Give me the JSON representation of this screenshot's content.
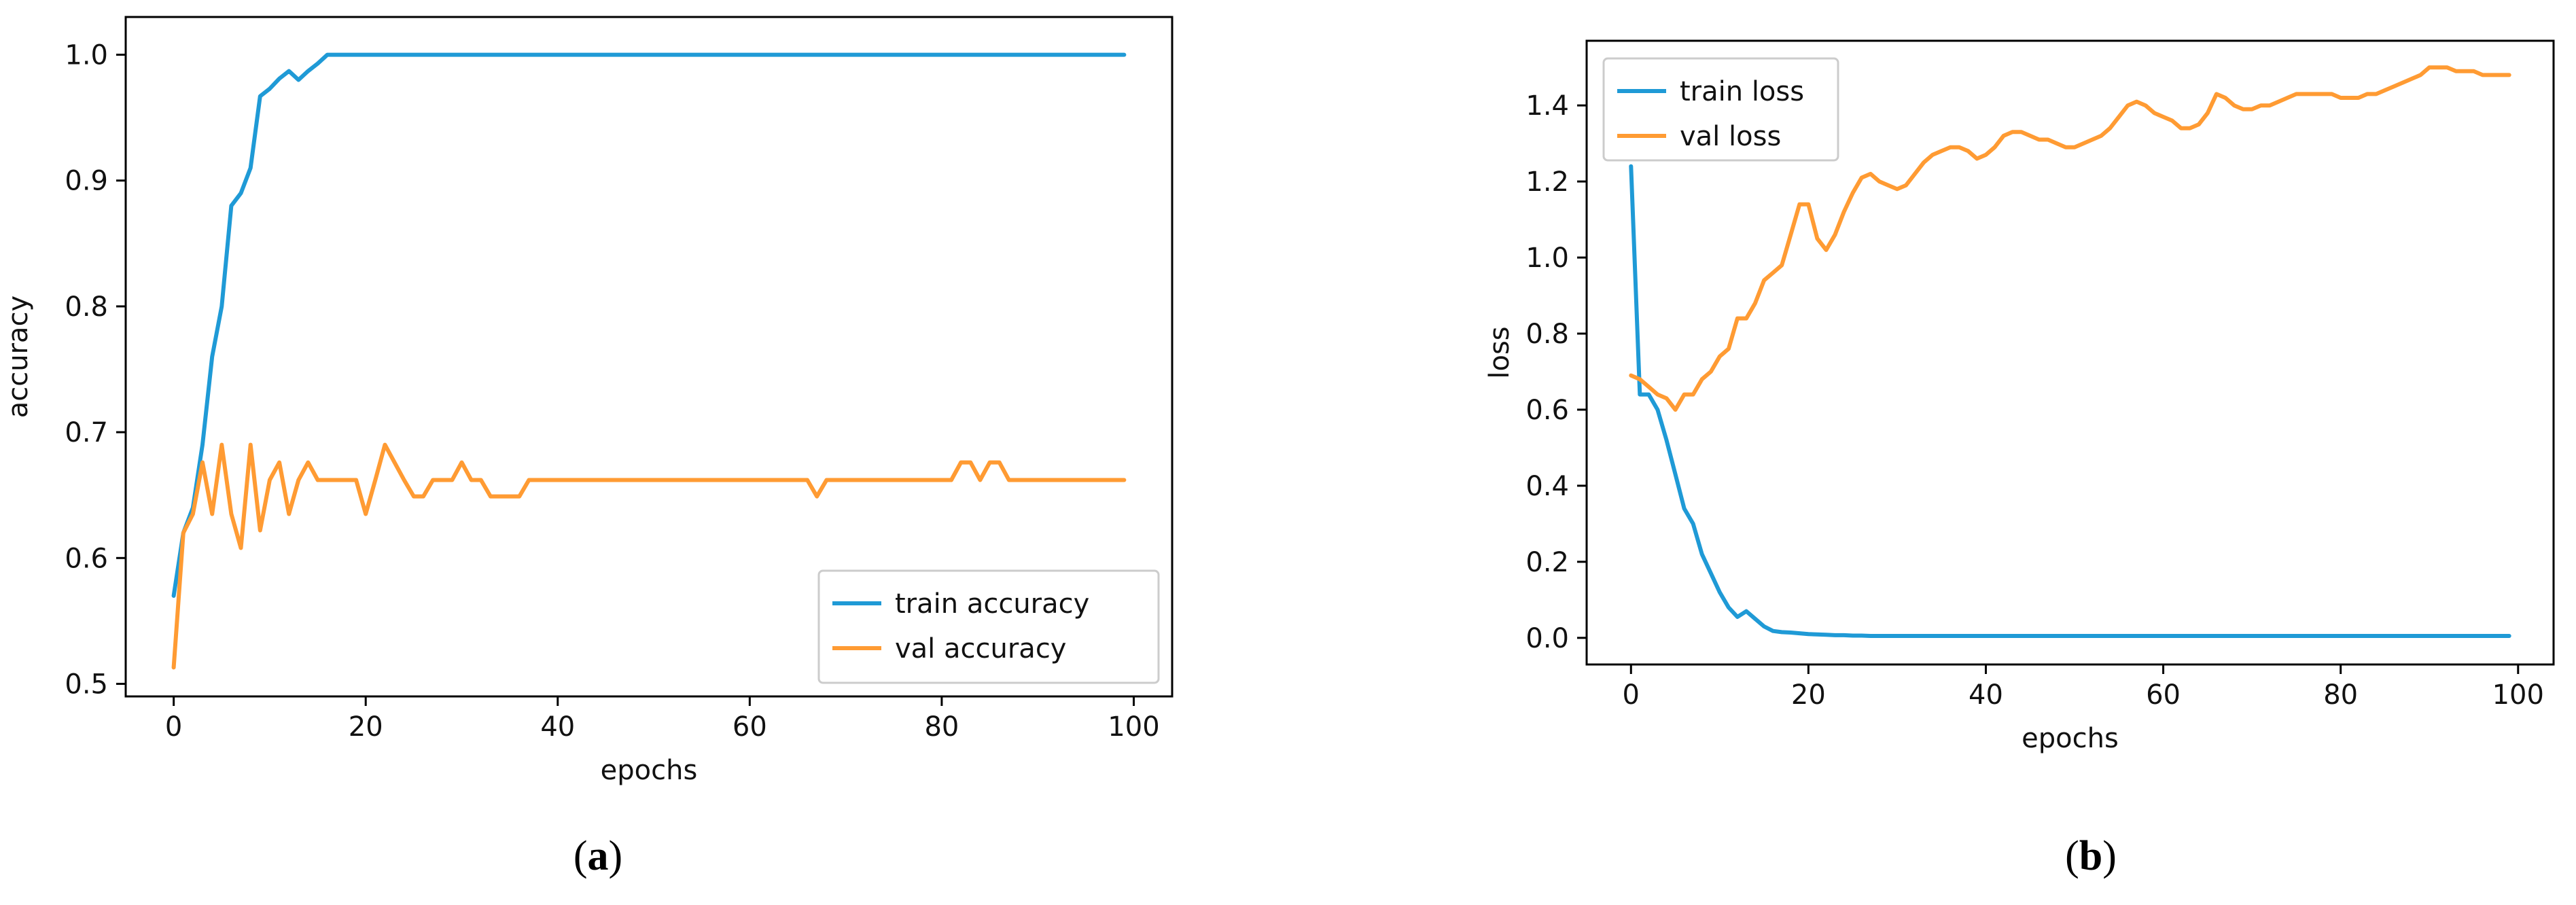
{
  "chart_data": [
    {
      "panel": "(a)",
      "panel_letter": "a",
      "type": "line",
      "title": "",
      "xlabel": "epochs",
      "ylabel": "accuracy",
      "xlim": [
        -5,
        104
      ],
      "ylim": [
        0.49,
        1.03
      ],
      "xticks": [
        0,
        20,
        40,
        60,
        80,
        100
      ],
      "yticks": [
        0.5,
        0.6,
        0.7,
        0.8,
        0.9,
        1.0
      ],
      "ytick_labels": [
        "0.5",
        "0.6",
        "0.7",
        "0.8",
        "0.9",
        "1.0"
      ],
      "grid": false,
      "legend_position": "lower-right",
      "x": [
        0,
        1,
        2,
        3,
        4,
        5,
        6,
        7,
        8,
        9,
        10,
        11,
        12,
        13,
        14,
        15,
        16,
        17,
        18,
        19,
        20,
        21,
        22,
        23,
        24,
        25,
        26,
        27,
        28,
        29,
        30,
        31,
        32,
        33,
        34,
        35,
        36,
        37,
        38,
        39,
        40,
        41,
        42,
        43,
        44,
        45,
        46,
        47,
        48,
        49,
        50,
        51,
        52,
        53,
        54,
        55,
        56,
        57,
        58,
        59,
        60,
        61,
        62,
        63,
        64,
        65,
        66,
        67,
        68,
        69,
        70,
        71,
        72,
        73,
        74,
        75,
        76,
        77,
        78,
        79,
        80,
        81,
        82,
        83,
        84,
        85,
        86,
        87,
        88,
        89,
        90,
        91,
        92,
        93,
        94,
        95,
        96,
        97,
        98,
        99
      ],
      "series": [
        {
          "name": "train accuracy",
          "color": "#1f9ad6",
          "values": [
            0.57,
            0.62,
            0.64,
            0.69,
            0.76,
            0.8,
            0.88,
            0.89,
            0.91,
            0.967,
            0.973,
            0.981,
            0.987,
            0.98,
            0.987,
            0.993,
            1.0,
            1.0,
            1.0,
            1.0,
            1.0,
            1.0,
            1.0,
            1.0,
            1.0,
            1.0,
            1.0,
            1.0,
            1.0,
            1.0,
            1.0,
            1.0,
            1.0,
            1.0,
            1.0,
            1.0,
            1.0,
            1.0,
            1.0,
            1.0,
            1.0,
            1.0,
            1.0,
            1.0,
            1.0,
            1.0,
            1.0,
            1.0,
            1.0,
            1.0,
            1.0,
            1.0,
            1.0,
            1.0,
            1.0,
            1.0,
            1.0,
            1.0,
            1.0,
            1.0,
            1.0,
            1.0,
            1.0,
            1.0,
            1.0,
            1.0,
            1.0,
            1.0,
            1.0,
            1.0,
            1.0,
            1.0,
            1.0,
            1.0,
            1.0,
            1.0,
            1.0,
            1.0,
            1.0,
            1.0,
            1.0,
            1.0,
            1.0,
            1.0,
            1.0,
            1.0,
            1.0,
            1.0,
            1.0,
            1.0,
            1.0,
            1.0,
            1.0,
            1.0,
            1.0,
            1.0,
            1.0,
            1.0,
            1.0,
            1.0
          ]
        },
        {
          "name": "val accuracy",
          "color": "#ff9b33",
          "values": [
            0.513,
            0.62,
            0.635,
            0.676,
            0.635,
            0.69,
            0.635,
            0.608,
            0.69,
            0.622,
            0.662,
            0.676,
            0.635,
            0.662,
            0.676,
            0.662,
            0.662,
            0.662,
            0.662,
            0.662,
            0.635,
            0.662,
            0.69,
            0.676,
            0.662,
            0.649,
            0.649,
            0.662,
            0.662,
            0.662,
            0.676,
            0.662,
            0.662,
            0.649,
            0.649,
            0.649,
            0.649,
            0.662,
            0.662,
            0.662,
            0.662,
            0.662,
            0.662,
            0.662,
            0.662,
            0.662,
            0.662,
            0.662,
            0.662,
            0.662,
            0.662,
            0.662,
            0.662,
            0.662,
            0.662,
            0.662,
            0.662,
            0.662,
            0.662,
            0.662,
            0.662,
            0.662,
            0.662,
            0.662,
            0.662,
            0.662,
            0.662,
            0.649,
            0.662,
            0.662,
            0.662,
            0.662,
            0.662,
            0.662,
            0.662,
            0.662,
            0.662,
            0.662,
            0.662,
            0.662,
            0.662,
            0.662,
            0.676,
            0.676,
            0.662,
            0.676,
            0.676,
            0.662,
            0.662,
            0.662,
            0.662,
            0.662,
            0.662,
            0.662,
            0.662,
            0.662,
            0.662,
            0.662,
            0.662,
            0.662
          ]
        }
      ]
    },
    {
      "panel": "(b)",
      "panel_letter": "b",
      "type": "line",
      "title": "",
      "xlabel": "epochs",
      "ylabel": "loss",
      "xlim": [
        -5,
        104
      ],
      "ylim": [
        -0.07,
        1.57
      ],
      "xticks": [
        0,
        20,
        40,
        60,
        80,
        100
      ],
      "yticks": [
        0.0,
        0.2,
        0.4,
        0.6,
        0.8,
        1.0,
        1.2,
        1.4
      ],
      "ytick_labels": [
        "0.0",
        "0.2",
        "0.4",
        "0.6",
        "0.8",
        "1.0",
        "1.2",
        "1.4"
      ],
      "grid": false,
      "legend_position": "upper-left",
      "x": [
        0,
        1,
        2,
        3,
        4,
        5,
        6,
        7,
        8,
        9,
        10,
        11,
        12,
        13,
        14,
        15,
        16,
        17,
        18,
        19,
        20,
        21,
        22,
        23,
        24,
        25,
        26,
        27,
        28,
        29,
        30,
        31,
        32,
        33,
        34,
        35,
        36,
        37,
        38,
        39,
        40,
        41,
        42,
        43,
        44,
        45,
        46,
        47,
        48,
        49,
        50,
        51,
        52,
        53,
        54,
        55,
        56,
        57,
        58,
        59,
        60,
        61,
        62,
        63,
        64,
        65,
        66,
        67,
        68,
        69,
        70,
        71,
        72,
        73,
        74,
        75,
        76,
        77,
        78,
        79,
        80,
        81,
        82,
        83,
        84,
        85,
        86,
        87,
        88,
        89,
        90,
        91,
        92,
        93,
        94,
        95,
        96,
        97,
        98,
        99
      ],
      "series": [
        {
          "name": "train loss",
          "color": "#1f9ad6",
          "values": [
            1.24,
            0.64,
            0.64,
            0.6,
            0.52,
            0.43,
            0.34,
            0.3,
            0.22,
            0.17,
            0.12,
            0.08,
            0.055,
            0.07,
            0.05,
            0.03,
            0.018,
            0.015,
            0.014,
            0.012,
            0.01,
            0.009,
            0.008,
            0.007,
            0.007,
            0.006,
            0.006,
            0.005,
            0.005,
            0.005,
            0.005,
            0.005,
            0.005,
            0.005,
            0.005,
            0.005,
            0.005,
            0.005,
            0.005,
            0.005,
            0.005,
            0.005,
            0.005,
            0.005,
            0.005,
            0.005,
            0.005,
            0.005,
            0.005,
            0.005,
            0.005,
            0.005,
            0.005,
            0.005,
            0.005,
            0.005,
            0.005,
            0.005,
            0.005,
            0.005,
            0.005,
            0.005,
            0.005,
            0.005,
            0.005,
            0.005,
            0.005,
            0.005,
            0.005,
            0.005,
            0.005,
            0.005,
            0.005,
            0.005,
            0.005,
            0.005,
            0.005,
            0.005,
            0.005,
            0.005,
            0.005,
            0.005,
            0.005,
            0.005,
            0.005,
            0.005,
            0.005,
            0.005,
            0.005,
            0.005,
            0.005,
            0.005,
            0.005,
            0.005,
            0.005,
            0.005,
            0.005,
            0.005,
            0.005,
            0.005
          ]
        },
        {
          "name": "val loss",
          "color": "#ff9b33",
          "values": [
            0.69,
            0.68,
            0.66,
            0.64,
            0.63,
            0.6,
            0.64,
            0.64,
            0.68,
            0.7,
            0.74,
            0.76,
            0.84,
            0.84,
            0.88,
            0.94,
            0.96,
            0.98,
            1.06,
            1.14,
            1.14,
            1.05,
            1.02,
            1.06,
            1.12,
            1.17,
            1.21,
            1.22,
            1.2,
            1.19,
            1.18,
            1.19,
            1.22,
            1.25,
            1.27,
            1.28,
            1.29,
            1.29,
            1.28,
            1.26,
            1.27,
            1.29,
            1.32,
            1.33,
            1.33,
            1.32,
            1.31,
            1.31,
            1.3,
            1.29,
            1.29,
            1.3,
            1.31,
            1.32,
            1.34,
            1.37,
            1.4,
            1.41,
            1.4,
            1.38,
            1.37,
            1.36,
            1.34,
            1.34,
            1.35,
            1.38,
            1.43,
            1.42,
            1.4,
            1.39,
            1.39,
            1.4,
            1.4,
            1.41,
            1.42,
            1.43,
            1.43,
            1.43,
            1.43,
            1.43,
            1.42,
            1.42,
            1.42,
            1.43,
            1.43,
            1.44,
            1.45,
            1.46,
            1.47,
            1.48,
            1.5,
            1.5,
            1.5,
            1.49,
            1.49,
            1.49,
            1.48,
            1.48,
            1.48,
            1.48
          ]
        }
      ]
    }
  ]
}
